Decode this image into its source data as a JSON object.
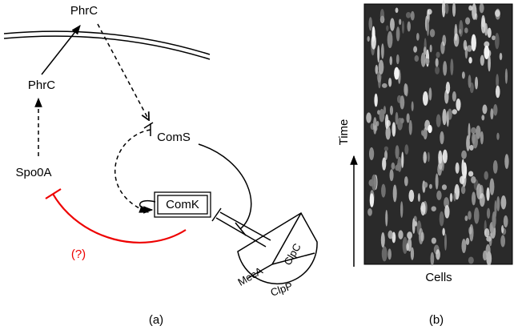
{
  "panel_a": {
    "phrc_out": "PhrC",
    "phrc_in": "PhrC",
    "spo0a": "Spo0A",
    "coms": "ComS",
    "comk": "ComK",
    "unknown": "(?)",
    "meca": "MecA",
    "clpc": "ClpC",
    "clpp": "ClpP",
    "label": "(a)"
  },
  "panel_b": {
    "y_axis": "Time",
    "x_axis": "Cells",
    "label": "(b)"
  }
}
